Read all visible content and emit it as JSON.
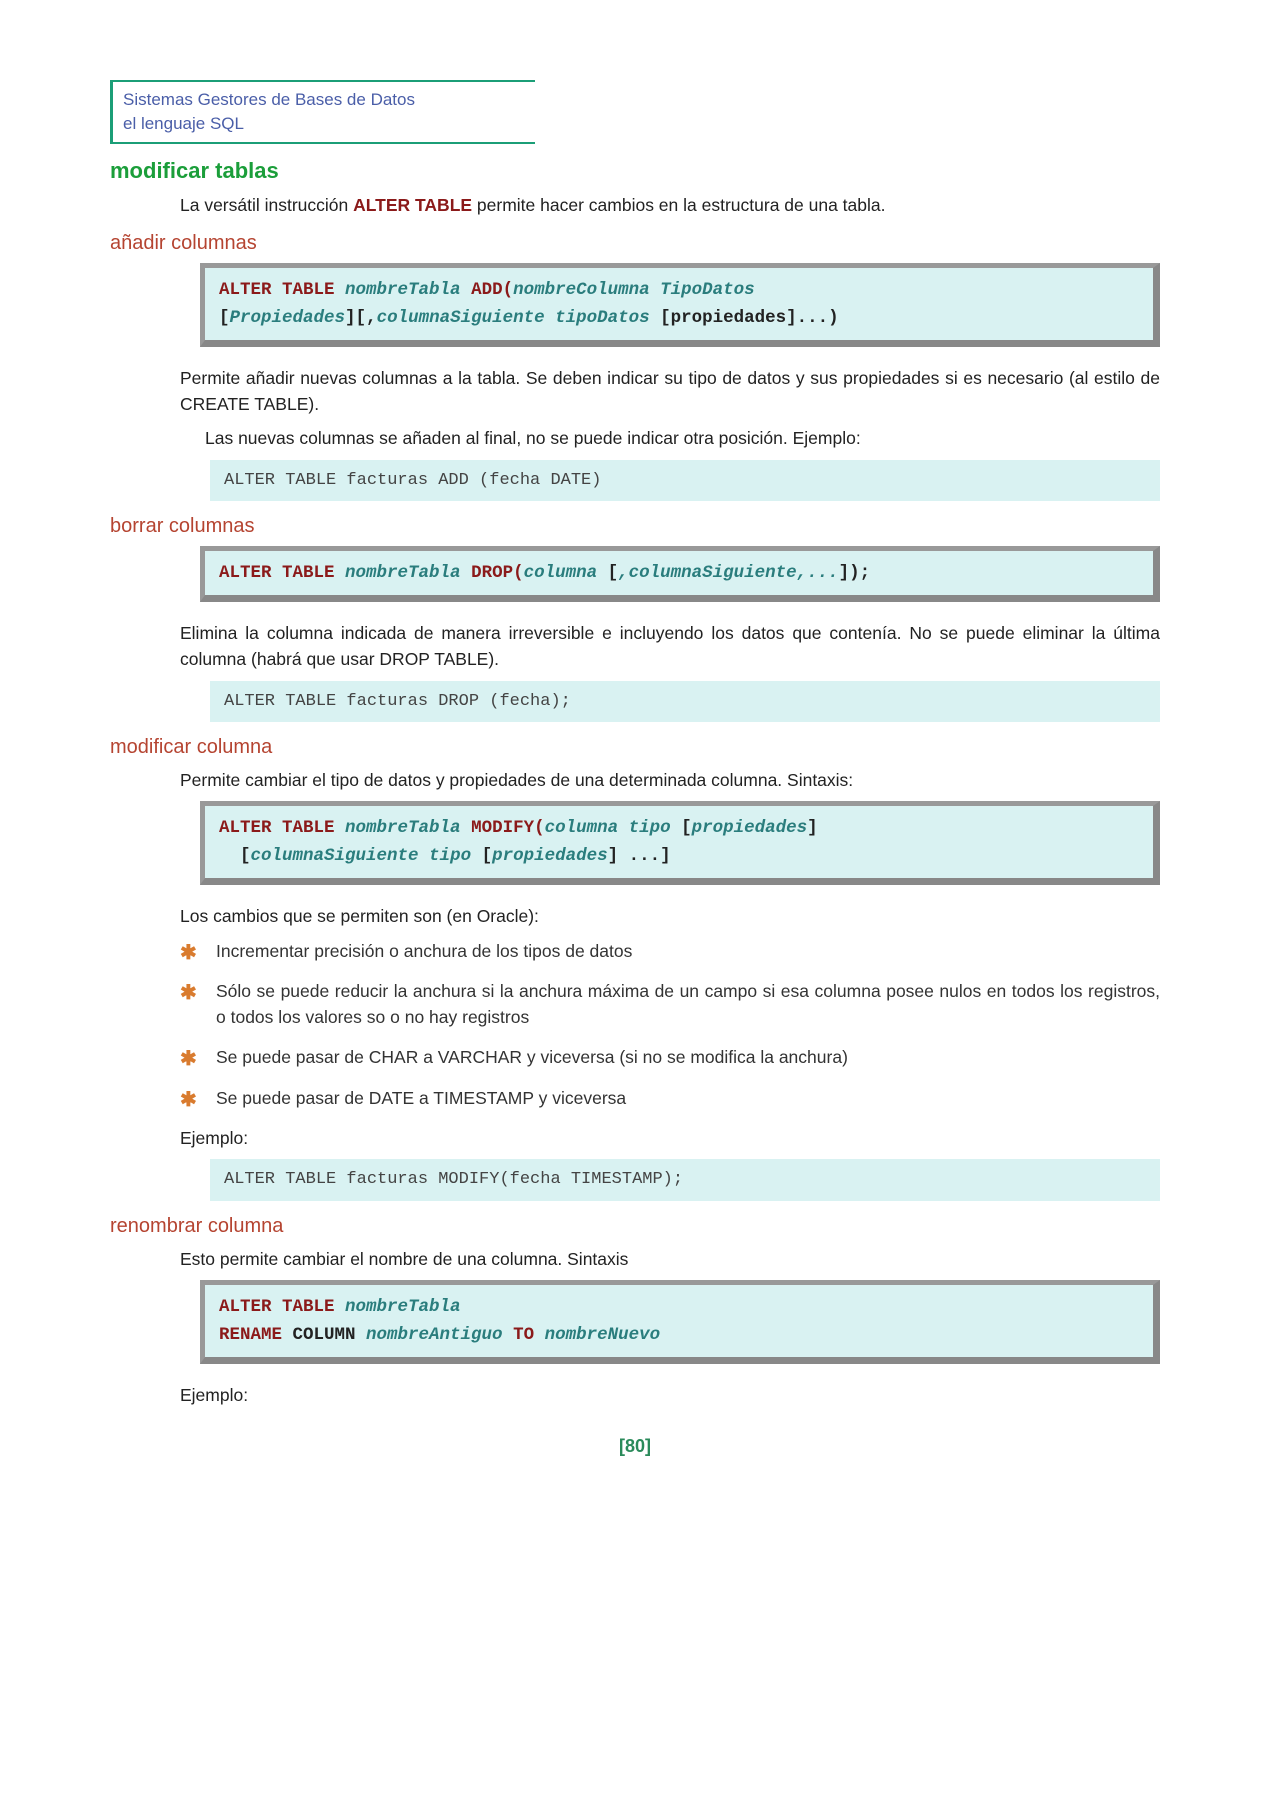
{
  "colors": {
    "header_border": "#1b9e77",
    "header_text": "#4a5ea8",
    "h2": "#1b9e3a",
    "h3": "#b54431",
    "body": "#222222",
    "syntax_bg": "#d9f2f2",
    "syntax_border_light": "#999999",
    "syntax_border_dark": "#888888",
    "keyword": "#8b1a1a",
    "placeholder": "#2a7d7d",
    "bullet": "#d97b2e",
    "pagenum": "#2a8a5a"
  },
  "header": {
    "line1": "Sistemas Gestores de Bases de Datos",
    "line2": "el lenguaje SQL"
  },
  "h2_modificar_tablas": "modificar tablas",
  "intro": {
    "pre": "La versátil instrucción ",
    "kw": "ALTER TABLE",
    "post": " permite hacer cambios en la estructura de una tabla."
  },
  "anadir": {
    "title": "añadir columnas",
    "syntax_parts": {
      "l1_kw1": "ALTER TABLE  ",
      "l1_ph1": "nombreTabla",
      "l1_kw2": " ADD(",
      "l1_ph2": "nombreColumna TipoDatos",
      "l2_bk1": "[",
      "l2_ph1": "Propiedades",
      "l2_bk2": "][,",
      "l2_ph2": "columnaSiguiente tipoDatos",
      "l2_bk3": " [propiedades]...)"
    },
    "para1": "Permite añadir nuevas columnas a la tabla. Se deben indicar su tipo de datos y sus propiedades si es necesario (al estilo de CREATE TABLE).",
    "para2": "Las nuevas columnas se añaden al final, no se puede indicar otra posición. Ejemplo:",
    "example": "ALTER TABLE facturas ADD (fecha DATE)"
  },
  "borrar": {
    "title": "borrar columnas",
    "syntax_parts": {
      "kw1": "ALTER TABLE ",
      "ph1": "nombreTabla",
      "kw2": " DROP(",
      "ph2": "columna ",
      "bk1": "[",
      "ph3": ",columnaSiguiente,...",
      "bk2": "]);"
    },
    "para1": "Elimina la columna indicada de manera irreversible e incluyendo los datos que contenía. No se puede eliminar la última columna (habrá que usar DROP TABLE).",
    "example": "ALTER TABLE facturas DROP (fecha);"
  },
  "modificar": {
    "title": "modificar columna",
    "para0": "Permite cambiar el tipo de datos y propiedades de una determinada columna. Sintaxis:",
    "syntax_parts": {
      "l1_kw1": "ALTER TABLE ",
      "l1_ph1": "nombreTabla",
      "l1_kw2": " MODIFY(",
      "l1_ph2": "columna tipo",
      "l1_bk1": " [",
      "l1_ph3": "propiedades",
      "l1_bk2": "]",
      "l2_pre": "  ",
      "l2_bk1": "[",
      "l2_ph1": "columnaSiguiente tipo",
      "l2_bk2": " [",
      "l2_ph2": "propiedades",
      "l2_bk3": "] ...]"
    },
    "para1": "Los cambios que se permiten son (en Oracle):",
    "bullets": [
      "Incrementar precisión o anchura de los tipos de datos",
      "Sólo se puede reducir la anchura si la anchura máxima de un campo si esa columna posee nulos en todos los registros, o todos los valores so o no hay registros",
      "Se puede pasar de CHAR a VARCHAR y viceversa (si no se modifica la anchura)",
      "Se puede pasar de DATE a TIMESTAMP y viceversa"
    ],
    "para2": "Ejemplo:",
    "example": "ALTER TABLE facturas MODIFY(fecha TIMESTAMP);"
  },
  "renombrar": {
    "title": "renombrar columna",
    "para0": "Esto permite cambiar el nombre de una columna. Sintaxis",
    "syntax_parts": {
      "l1_kw1": "ALTER TABLE ",
      "l1_ph1": "nombreTabla",
      "l2_kw1": "RENAME",
      "l2_kw2": " COLUMN ",
      "l2_ph1": "nombreAntiguo",
      "l2_kw3": " TO ",
      "l2_ph2": "nombreNuevo"
    },
    "para1": "Ejemplo:"
  },
  "page_number": "[80]"
}
